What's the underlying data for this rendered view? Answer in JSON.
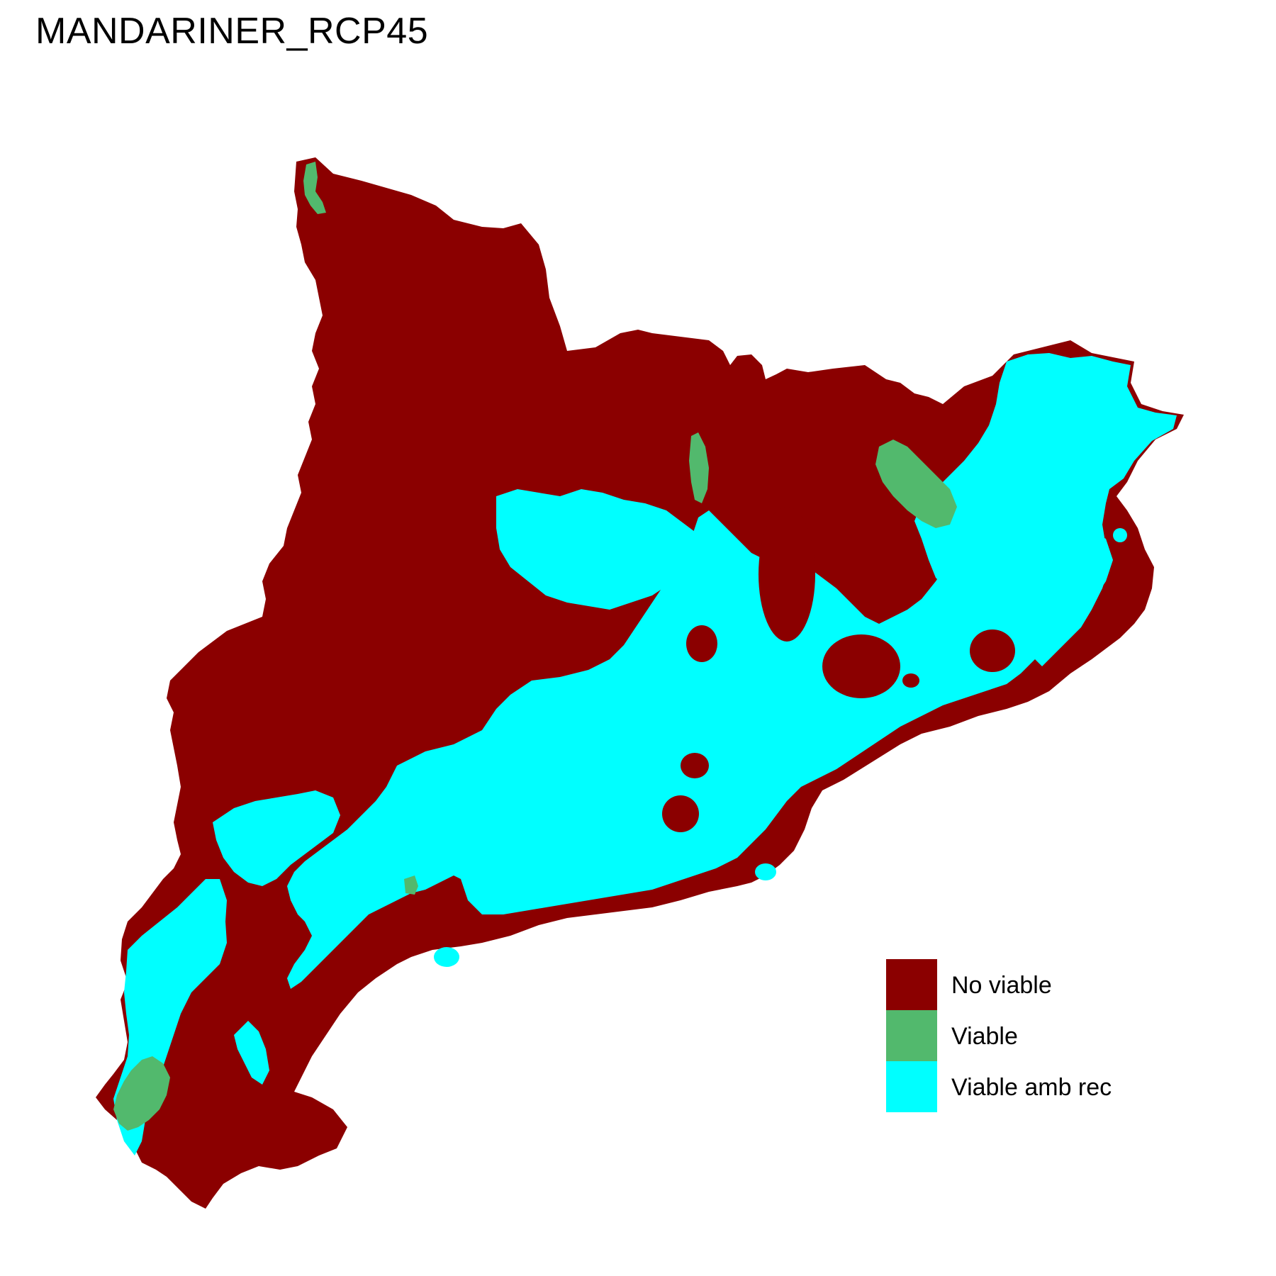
{
  "title": "MANDARINER_RCP45",
  "colors": {
    "no_viable": "#8b0000",
    "viable": "#52b96d",
    "viable_amb_rec": "#00ffff",
    "background": "#ffffff"
  },
  "legend": {
    "items": [
      {
        "label": "No viable",
        "color": "#8b0000"
      },
      {
        "label": "Viable",
        "color": "#52b96d"
      },
      {
        "label": "Viable amb rec",
        "color": "#00ffff"
      }
    ]
  }
}
